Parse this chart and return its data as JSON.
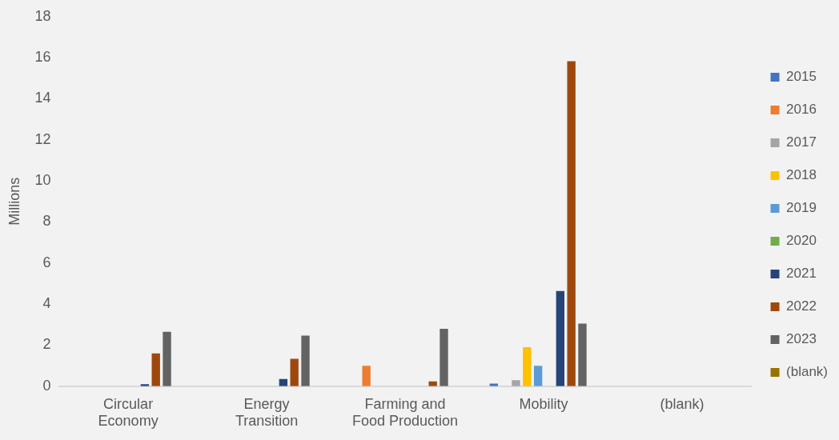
{
  "chart_data": {
    "type": "bar",
    "ylabel": "Millions",
    "categories": [
      "Circular Economy",
      "Energy Transition",
      "Farming and Food Production",
      "Mobility",
      "(blank)"
    ],
    "series": [
      {
        "name": "2015",
        "color": "#4472c4",
        "values": [
          null,
          null,
          null,
          0.13,
          null
        ]
      },
      {
        "name": "2016",
        "color": "#ed7d31",
        "values": [
          null,
          null,
          1.0,
          null,
          null
        ]
      },
      {
        "name": "2017",
        "color": "#a5a5a5",
        "values": [
          null,
          null,
          null,
          0.29,
          null
        ]
      },
      {
        "name": "2018",
        "color": "#ffc000",
        "values": [
          null,
          null,
          null,
          1.9,
          null
        ]
      },
      {
        "name": "2019",
        "color": "#5b9bd5",
        "values": [
          null,
          null,
          null,
          1.0,
          null
        ]
      },
      {
        "name": "2020",
        "color": "#70ad47",
        "values": [
          null,
          null,
          null,
          null,
          null
        ]
      },
      {
        "name": "2021",
        "color": "#264478",
        "values": [
          0.1,
          0.35,
          null,
          4.64,
          null
        ]
      },
      {
        "name": "2022",
        "color": "#9e480e",
        "values": [
          1.6,
          1.34,
          0.24,
          15.83,
          null
        ]
      },
      {
        "name": "2023",
        "color": "#636363",
        "values": [
          2.65,
          2.47,
          2.8,
          3.05,
          null
        ]
      },
      {
        "name": "(blank)",
        "color": "#997300",
        "values": [
          null,
          null,
          null,
          null,
          null
        ]
      }
    ],
    "ylim": [
      0,
      18
    ],
    "yticks": [
      0,
      2,
      4,
      6,
      8,
      10,
      12,
      14,
      16,
      18
    ],
    "grid": false,
    "legend": "right"
  }
}
